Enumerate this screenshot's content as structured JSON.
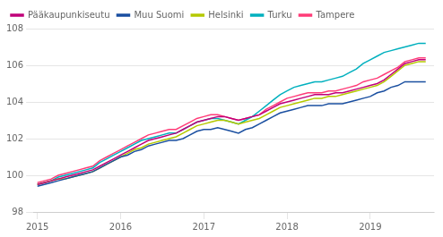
{
  "chart_data": {
    "type": "line",
    "x": [
      2015,
      2015.083333,
      2015.166667,
      2015.25,
      2015.333333,
      2015.416667,
      2015.5,
      2015.583333,
      2015.666667,
      2015.75,
      2015.833333,
      2015.916667,
      2016,
      2016.083333,
      2016.166667,
      2016.25,
      2016.333333,
      2016.416667,
      2016.5,
      2016.583333,
      2016.666667,
      2016.75,
      2016.833333,
      2016.916667,
      2017,
      2017.083333,
      2017.166667,
      2017.25,
      2017.333333,
      2017.416667,
      2017.5,
      2017.583333,
      2017.666667,
      2017.75,
      2017.833333,
      2017.916667,
      2018,
      2018.083333,
      2018.166667,
      2018.25,
      2018.333333,
      2018.416667,
      2018.5,
      2018.583333,
      2018.666667,
      2018.75,
      2018.833333,
      2018.916667,
      2019,
      2019.083333,
      2019.166667,
      2019.25,
      2019.333333,
      2019.416667,
      2019.5,
      2019.583333,
      2019.666667
    ],
    "series": [
      {
        "name": "Pääkaupunkiseutu",
        "color": "#c0007a",
        "values": [
          99.5,
          99.6,
          99.7,
          99.8,
          99.9,
          100.0,
          100.1,
          100.2,
          100.3,
          100.5,
          100.7,
          100.9,
          101.1,
          101.3,
          101.5,
          101.7,
          101.9,
          102.0,
          102.1,
          102.2,
          102.3,
          102.5,
          102.7,
          102.9,
          103.0,
          103.1,
          103.2,
          103.2,
          103.1,
          103.0,
          103.1,
          103.2,
          103.3,
          103.5,
          103.7,
          103.9,
          104.0,
          104.1,
          104.2,
          104.3,
          104.4,
          104.4,
          104.4,
          104.5,
          104.5,
          104.6,
          104.7,
          104.8,
          104.9,
          105.0,
          105.2,
          105.5,
          105.8,
          106.1,
          106.2,
          106.3,
          106.3
        ]
      },
      {
        "name": "Muu Suomi",
        "color": "#1a4fa0",
        "values": [
          99.4,
          99.5,
          99.6,
          99.7,
          99.8,
          99.9,
          100.0,
          100.1,
          100.2,
          100.4,
          100.6,
          100.8,
          101.0,
          101.1,
          101.3,
          101.4,
          101.6,
          101.7,
          101.8,
          101.9,
          101.9,
          102.0,
          102.2,
          102.4,
          102.5,
          102.5,
          102.6,
          102.5,
          102.4,
          102.3,
          102.5,
          102.6,
          102.8,
          103.0,
          103.2,
          103.4,
          103.5,
          103.6,
          103.7,
          103.8,
          103.8,
          103.8,
          103.9,
          103.9,
          103.9,
          104.0,
          104.1,
          104.2,
          104.3,
          104.5,
          104.6,
          104.8,
          104.9,
          105.1,
          105.1,
          105.1,
          105.1
        ]
      },
      {
        "name": "Helsinki",
        "color": "#b5c900",
        "values": [
          99.5,
          99.6,
          99.7,
          99.8,
          99.8,
          99.9,
          100.0,
          100.1,
          100.2,
          100.4,
          100.6,
          100.8,
          101.0,
          101.2,
          101.4,
          101.5,
          101.7,
          101.8,
          101.9,
          102.0,
          102.1,
          102.3,
          102.5,
          102.7,
          102.8,
          102.9,
          103.0,
          103.0,
          102.9,
          102.8,
          102.9,
          103.0,
          103.1,
          103.3,
          103.5,
          103.7,
          103.8,
          103.9,
          104.0,
          104.1,
          104.2,
          104.2,
          104.3,
          104.3,
          104.4,
          104.5,
          104.6,
          104.7,
          104.8,
          104.9,
          105.1,
          105.4,
          105.7,
          106.0,
          106.1,
          106.2,
          106.2
        ]
      },
      {
        "name": "Turku",
        "color": "#00b0be",
        "values": [
          99.5,
          99.6,
          99.7,
          99.9,
          100.0,
          100.1,
          100.2,
          100.3,
          100.4,
          100.7,
          100.9,
          101.1,
          101.3,
          101.5,
          101.7,
          101.9,
          102.0,
          102.1,
          102.2,
          102.3,
          102.3,
          102.5,
          102.7,
          102.9,
          103.0,
          103.1,
          103.1,
          103.0,
          102.9,
          102.8,
          103.0,
          103.2,
          103.5,
          103.8,
          104.1,
          104.4,
          104.6,
          104.8,
          104.9,
          105.0,
          105.1,
          105.1,
          105.2,
          105.3,
          105.4,
          105.6,
          105.8,
          106.1,
          106.3,
          106.5,
          106.7,
          106.8,
          106.9,
          107.0,
          107.1,
          107.2,
          107.2
        ]
      },
      {
        "name": "Tampere",
        "color": "#ff3c78",
        "values": [
          99.6,
          99.7,
          99.8,
          100.0,
          100.1,
          100.2,
          100.3,
          100.4,
          100.5,
          100.8,
          101.0,
          101.2,
          101.4,
          101.6,
          101.8,
          102.0,
          102.2,
          102.3,
          102.4,
          102.5,
          102.5,
          102.7,
          102.9,
          103.1,
          103.2,
          103.3,
          103.3,
          103.2,
          103.1,
          103.0,
          103.1,
          103.2,
          103.3,
          103.6,
          103.8,
          104.0,
          104.2,
          104.3,
          104.4,
          104.5,
          104.5,
          104.5,
          104.6,
          104.6,
          104.7,
          104.8,
          104.9,
          105.1,
          105.2,
          105.3,
          105.5,
          105.7,
          105.9,
          106.2,
          106.3,
          106.4,
          106.4
        ]
      }
    ],
    "xlim": [
      2014.95,
      2019.766667
    ],
    "xticks": [
      2015,
      2016,
      2017,
      2018,
      2019
    ],
    "ylim": [
      98,
      108
    ],
    "yticks": [
      98,
      100,
      102,
      104,
      106,
      108
    ],
    "grid": "y",
    "legend": "upper left"
  }
}
